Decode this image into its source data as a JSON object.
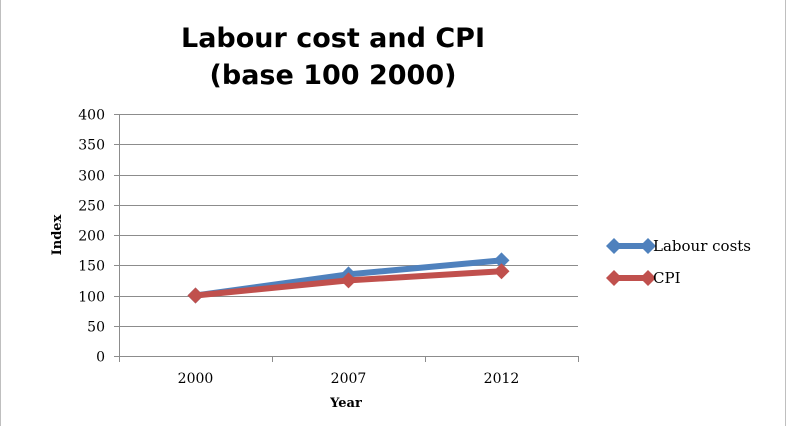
{
  "chart_data": {
    "type": "line",
    "title": "Labour cost and CPI",
    "subtitle": "(base 100 2000)",
    "xlabel": "Year",
    "ylabel": "Index",
    "categories": [
      "2000",
      "2007",
      "2012"
    ],
    "ylim": [
      0,
      400
    ],
    "yticks": [
      0,
      50,
      100,
      150,
      200,
      250,
      300,
      350,
      400
    ],
    "grid": true,
    "legend_position": "right",
    "series": [
      {
        "name": "Labour costs",
        "values": [
          100,
          135,
          158
        ],
        "color": "#4F81BD",
        "marker": "diamond"
      },
      {
        "name": "CPI",
        "values": [
          100,
          125,
          140
        ],
        "color": "#C0504D",
        "marker": "diamond"
      }
    ]
  }
}
